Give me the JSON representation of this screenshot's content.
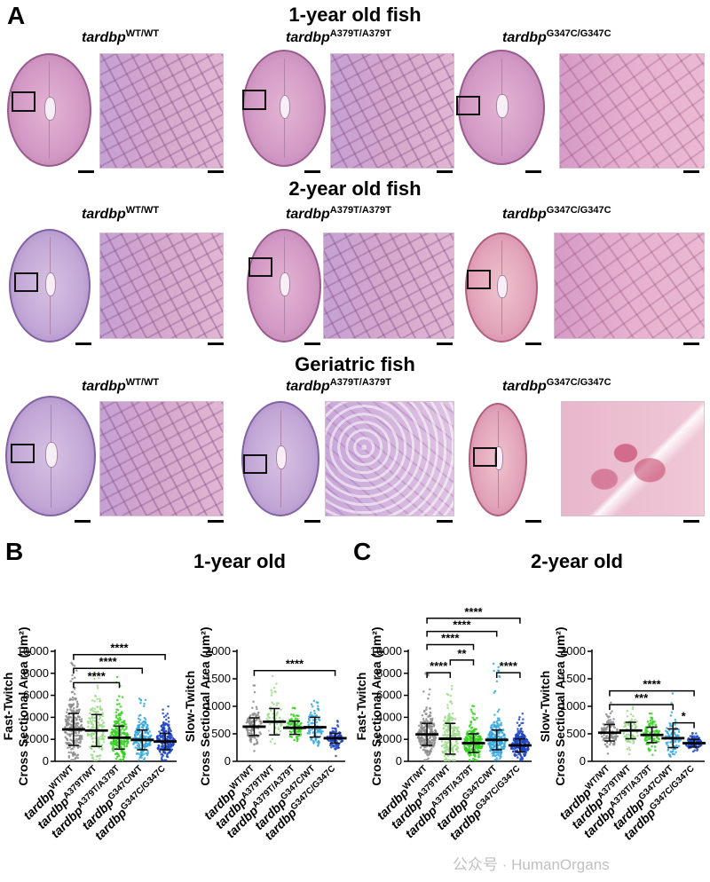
{
  "figure": {
    "panel_letters": {
      "a": "A",
      "b": "B",
      "c": "C"
    },
    "rows": [
      {
        "title": "1-year old fish"
      },
      {
        "title": "2-year old fish"
      },
      {
        "title": "Geriatric fish"
      }
    ],
    "genotypes": [
      {
        "base": "tardbp",
        "sup": "WT/WT"
      },
      {
        "base": "tardbp",
        "sup": "A379T/A379T"
      },
      {
        "base": "tardbp",
        "sup": "G347C/G347C"
      }
    ]
  },
  "panel_b": {
    "title": "1-year old"
  },
  "panel_c": {
    "title": "2-year old"
  },
  "axis_labels": {
    "fast": [
      "Fast-Twitch",
      "Cross Sectional Area (μm²)"
    ],
    "slow": [
      "Slow-Twitch",
      "Cross Sectional Area (μm²)"
    ]
  },
  "chart_data": [
    {
      "id": "b_fast",
      "type": "scatter",
      "panel": "B",
      "ylabel": "Fast-Twitch Cross Sectional Area (μm²)",
      "ylim": [
        0,
        10000
      ],
      "yticks": [
        "0",
        "2000",
        "4000",
        "6000",
        "8000",
        "10000"
      ],
      "categories": [
        {
          "base": "tardbp",
          "sup": "WT/WT"
        },
        {
          "base": "tardbp",
          "sup": "A379T/WT"
        },
        {
          "base": "tardbp",
          "sup": "A379T/A379T"
        },
        {
          "base": "tardbp",
          "sup": "G347C/WT"
        },
        {
          "base": "tardbp",
          "sup": "G347C/G347C"
        }
      ],
      "colors": [
        "#8c8c8c",
        "#9fdc8a",
        "#35d11f",
        "#37a8df",
        "#1f45c6"
      ],
      "mean": [
        2900,
        2800,
        2150,
        1950,
        1800
      ],
      "sd": [
        1450,
        1450,
        1050,
        900,
        750
      ],
      "max": [
        9200,
        8100,
        7800,
        6200,
        5000
      ],
      "n": [
        230,
        150,
        210,
        200,
        220
      ],
      "significance": [
        {
          "from": 0,
          "to": 2,
          "label": "****",
          "y": 7150
        },
        {
          "from": 0,
          "to": 3,
          "label": "****",
          "y": 8450
        },
        {
          "from": 0,
          "to": 4,
          "label": "****",
          "y": 9700
        }
      ]
    },
    {
      "id": "b_slow",
      "type": "scatter",
      "panel": "B",
      "ylabel": "Slow-Twitch Cross Sectional Area (μm²)",
      "ylim": [
        0,
        2000
      ],
      "yticks": [
        "0",
        "500",
        "1000",
        "1500",
        "2000"
      ],
      "categories": [
        {
          "base": "tardbp",
          "sup": "WT/WT"
        },
        {
          "base": "tardbp",
          "sup": "A379T/WT"
        },
        {
          "base": "tardbp",
          "sup": "A379T/A379T"
        },
        {
          "base": "tardbp",
          "sup": "G347C/WT"
        },
        {
          "base": "tardbp",
          "sup": "G347C/G347C"
        }
      ],
      "colors": [
        "#8c8c8c",
        "#9fdc8a",
        "#35d11f",
        "#37a8df",
        "#1f45c6"
      ],
      "mean": [
        630,
        720,
        610,
        620,
        420
      ],
      "sd": [
        160,
        240,
        120,
        180,
        90
      ],
      "max": [
        1400,
        1580,
        1050,
        1200,
        800
      ],
      "n": [
        110,
        60,
        90,
        90,
        100
      ],
      "significance": [
        {
          "from": 0,
          "to": 4,
          "label": "****",
          "y": 1650
        }
      ]
    },
    {
      "id": "c_fast",
      "type": "scatter",
      "panel": "C",
      "ylabel": "Fast-Twitch Cross Sectional Area (μm²)",
      "ylim": [
        0,
        10000
      ],
      "yticks": [
        "0",
        "2000",
        "4000",
        "6000",
        "8000",
        "10000"
      ],
      "categories": [
        {
          "base": "tardbp",
          "sup": "WT/WT"
        },
        {
          "base": "tardbp",
          "sup": "A379T/WT"
        },
        {
          "base": "tardbp",
          "sup": "A379T/A379T"
        },
        {
          "base": "tardbp",
          "sup": "G347C/WT"
        },
        {
          "base": "tardbp",
          "sup": "G347C/G347C"
        }
      ],
      "colors": [
        "#8c8c8c",
        "#9fdc8a",
        "#35d11f",
        "#37a8df",
        "#1f45c6"
      ],
      "mean": [
        2450,
        2050,
        1650,
        1950,
        1450
      ],
      "sd": [
        1000,
        1400,
        850,
        900,
        600
      ],
      "max": [
        8200,
        7300,
        5600,
        9200,
        4600
      ],
      "n": [
        250,
        180,
        220,
        230,
        240
      ],
      "significance": [
        {
          "from": 0,
          "to": 1,
          "label": "****",
          "y": 8050
        },
        {
          "from": 1,
          "to": 2,
          "label": "**",
          "y": 9200
        },
        {
          "from": 0,
          "to": 2,
          "label": "****",
          "y": 10600
        },
        {
          "from": 0,
          "to": 3,
          "label": "****",
          "y": 11800
        },
        {
          "from": 0,
          "to": 4,
          "label": "****",
          "y": 13000
        },
        {
          "from": 3,
          "to": 4,
          "label": "****",
          "y": 8050
        }
      ]
    },
    {
      "id": "c_slow",
      "type": "scatter",
      "panel": "C",
      "ylabel": "Slow-Twitch Cross Sectional Area (μm²)",
      "ylim": [
        0,
        2000
      ],
      "yticks": [
        "0",
        "500",
        "1000",
        "1500",
        "2000"
      ],
      "categories": [
        {
          "base": "tardbp",
          "sup": "WT/WT"
        },
        {
          "base": "tardbp",
          "sup": "A379T/WT"
        },
        {
          "base": "tardbp",
          "sup": "A379T/A379T"
        },
        {
          "base": "tardbp",
          "sup": "G347C/WT"
        },
        {
          "base": "tardbp",
          "sup": "G347C/G347C"
        }
      ],
      "colors": [
        "#8c8c8c",
        "#9fdc8a",
        "#35d11f",
        "#37a8df",
        "#1f45c6"
      ],
      "mean": [
        520,
        560,
        480,
        420,
        330
      ],
      "sd": [
        150,
        150,
        140,
        170,
        70
      ],
      "max": [
        1080,
        1000,
        900,
        1250,
        520
      ],
      "n": [
        100,
        70,
        100,
        90,
        100
      ],
      "significance": [
        {
          "from": 0,
          "to": 4,
          "label": "****",
          "y": 1280
        },
        {
          "from": 0,
          "to": 3,
          "label": "***",
          "y": 1030
        },
        {
          "from": 3,
          "to": 4,
          "label": "*",
          "y": 700
        }
      ]
    }
  ],
  "watermark": "公众号 · HumanOrgans",
  "colors": {
    "wt": "#8c8c8c",
    "a379t_het": "#9fdc8a",
    "a379t_hom": "#35d11f",
    "g347c_het": "#37a8df",
    "g347c_hom": "#1f45c6"
  }
}
